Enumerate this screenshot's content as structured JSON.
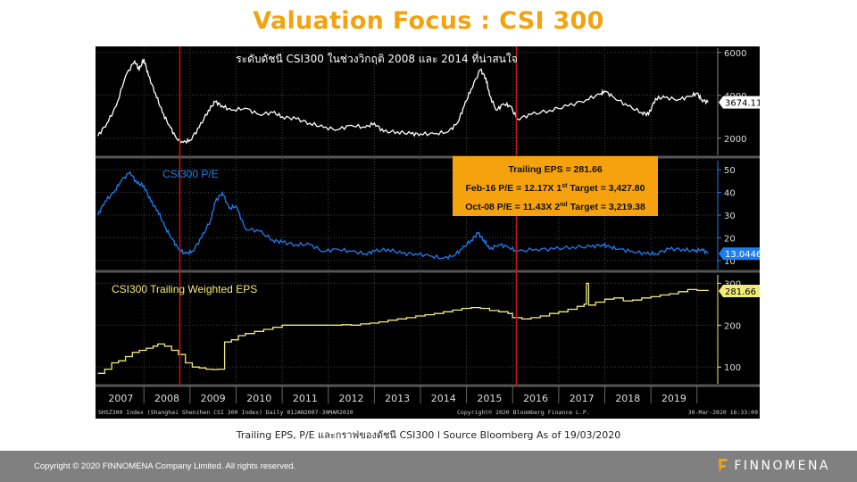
{
  "page": {
    "title": "Valuation Focus : CSI 300",
    "caption": "Trailing EPS, P/E และกราฟของดัชนี CSI300   l Source Bloomberg As of 19/03/2020",
    "footer_copyright": "Copyright © 2020 FINNOMENA Company Limited. All rights reserved.",
    "brand": "FINNOMENA",
    "brand_icon": "finnomena-f-logo-icon",
    "colors": {
      "title": "#f2a30f",
      "index_line": "#ffffff",
      "pe_line": "#1e7ef0",
      "eps_line": "#f0ec7a",
      "marker": "#cc1111",
      "annotation_bg": "#f6a20f",
      "footer_bg": "#808080"
    }
  },
  "chart_data": [
    {
      "type": "line",
      "name": "CSI 300 Index",
      "title": "ระดับดัชนี CSI300 ในช่วงวิกฤติ 2008 และ 2014 ที่น่าสนใจ",
      "ylim": [
        1200,
        6200
      ],
      "yticks": [
        2000,
        4000,
        6000
      ],
      "last_value_label": "3674.11",
      "x": [
        2007.0,
        2007.2,
        2007.4,
        2007.6,
        2007.8,
        2007.9,
        2008.0,
        2008.1,
        2008.25,
        2008.4,
        2008.55,
        2008.7,
        2008.85,
        2009.0,
        2009.2,
        2009.4,
        2009.55,
        2009.7,
        2009.9,
        2010.2,
        2010.5,
        2010.8,
        2011.0,
        2011.3,
        2011.6,
        2011.9,
        2012.2,
        2012.5,
        2012.8,
        2013.0,
        2013.2,
        2013.5,
        2013.8,
        2014.0,
        2014.3,
        2014.6,
        2014.8,
        2014.95,
        2015.1,
        2015.3,
        2015.42,
        2015.5,
        2015.65,
        2015.8,
        2015.95,
        2016.1,
        2016.4,
        2016.8,
        2017.2,
        2017.6,
        2017.9,
        2018.0,
        2018.2,
        2018.5,
        2018.8,
        2018.95,
        2019.1,
        2019.3,
        2019.6,
        2019.85,
        2020.0,
        2020.1,
        2020.24
      ],
      "values": [
        2100,
        2700,
        3500,
        4900,
        5600,
        5200,
        5700,
        4900,
        4100,
        3200,
        2600,
        2000,
        1800,
        1900,
        2500,
        3300,
        3700,
        3500,
        3300,
        3400,
        3100,
        3200,
        3000,
        2900,
        2700,
        2500,
        2400,
        2600,
        2500,
        2700,
        2300,
        2300,
        2200,
        2200,
        2200,
        2300,
        2700,
        3500,
        4300,
        5200,
        4800,
        4000,
        3300,
        3600,
        3500,
        2900,
        3100,
        3300,
        3500,
        3800,
        4050,
        4200,
        3900,
        3500,
        3200,
        3100,
        3850,
        3900,
        3800,
        3950,
        4100,
        3800,
        3674
      ]
    },
    {
      "type": "line",
      "name": "CSI300 P/E",
      "title": "CSI300 P/E",
      "ylim": [
        6,
        54
      ],
      "yticks": [
        10,
        20,
        30,
        40,
        50
      ],
      "last_value_label": "13.0446",
      "x": [
        2007.0,
        2007.15,
        2007.35,
        2007.5,
        2007.7,
        2007.85,
        2008.0,
        2008.15,
        2008.3,
        2008.45,
        2008.6,
        2008.75,
        2008.9,
        2009.05,
        2009.25,
        2009.45,
        2009.55,
        2009.7,
        2009.85,
        2010.0,
        2010.2,
        2010.5,
        2010.8,
        2011.0,
        2011.3,
        2011.6,
        2011.9,
        2012.2,
        2012.5,
        2012.8,
        2013.0,
        2013.3,
        2013.6,
        2013.9,
        2014.2,
        2014.5,
        2014.7,
        2014.9,
        2015.1,
        2015.25,
        2015.38,
        2015.5,
        2015.7,
        2015.9,
        2016.1,
        2016.5,
        2016.9,
        2017.3,
        2017.7,
        2017.95,
        2018.1,
        2018.3,
        2018.6,
        2018.9,
        2019.1,
        2019.4,
        2019.7,
        2019.95,
        2020.1,
        2020.24
      ],
      "values": [
        30,
        36,
        40,
        45,
        49,
        44,
        43,
        36,
        32,
        25,
        20,
        15,
        13,
        14,
        20,
        28,
        36,
        40,
        33,
        34,
        24,
        23,
        19,
        18,
        17,
        17,
        14,
        15,
        14,
        13,
        14,
        15,
        13,
        13,
        12,
        11,
        12,
        15,
        19,
        22,
        19,
        15,
        17,
        16,
        14,
        15,
        15,
        16,
        16,
        17,
        16,
        15,
        14,
        13,
        13,
        15,
        15,
        14,
        15,
        13
      ]
    },
    {
      "type": "line",
      "name": "CSI300 Trailing Weighted EPS",
      "title": "CSI300 Trailing Weighted EPS",
      "ylim": [
        60,
        320
      ],
      "yticks": [
        100,
        200,
        300
      ],
      "last_value_label": "281.66",
      "x": [
        2007.0,
        2007.15,
        2007.3,
        2007.45,
        2007.6,
        2007.75,
        2007.9,
        2008.05,
        2008.2,
        2008.3,
        2008.45,
        2008.6,
        2008.75,
        2008.9,
        2009.05,
        2009.2,
        2009.35,
        2009.5,
        2009.6,
        2009.75,
        2009.9,
        2010.05,
        2010.2,
        2010.4,
        2010.6,
        2010.8,
        2011.0,
        2011.3,
        2011.6,
        2011.9,
        2012.1,
        2012.3,
        2012.5,
        2012.7,
        2012.9,
        2013.1,
        2013.3,
        2013.5,
        2013.7,
        2013.9,
        2014.1,
        2014.3,
        2014.5,
        2014.7,
        2014.9,
        2015.1,
        2015.3,
        2015.5,
        2015.7,
        2015.9,
        2016.0,
        2016.2,
        2016.4,
        2016.6,
        2016.8,
        2017.0,
        2017.2,
        2017.4,
        2017.55,
        2017.6,
        2017.65,
        2017.8,
        2018.0,
        2018.2,
        2018.4,
        2018.6,
        2018.8,
        2019.0,
        2019.2,
        2019.4,
        2019.6,
        2019.8,
        2020.0,
        2020.24
      ],
      "values": [
        85,
        95,
        110,
        115,
        125,
        135,
        140,
        145,
        150,
        155,
        150,
        140,
        130,
        110,
        100,
        98,
        95,
        94,
        95,
        160,
        165,
        175,
        180,
        185,
        190,
        195,
        200,
        200,
        200,
        200,
        200,
        201,
        200,
        203,
        205,
        208,
        212,
        215,
        218,
        222,
        225,
        228,
        232,
        236,
        240,
        242,
        240,
        235,
        232,
        228,
        218,
        215,
        218,
        222,
        228,
        232,
        238,
        245,
        250,
        300,
        248,
        255,
        262,
        265,
        258,
        260,
        265,
        268,
        272,
        275,
        280,
        285,
        283,
        281.66
      ]
    }
  ],
  "shared_axis": {
    "x_range": [
      2006.95,
      2020.45
    ],
    "year_labels": [
      "2007",
      "2008",
      "2009",
      "2010",
      "2011",
      "2012",
      "2013",
      "2014",
      "2015",
      "2016",
      "2017",
      "2018",
      "2019"
    ],
    "markers": [
      {
        "label": "Oct-08",
        "x": 2008.78
      },
      {
        "label": "Feb-16",
        "x": 2016.08
      }
    ]
  },
  "annotation": {
    "line1": "Trailing EPS = 281.66",
    "line2_pre": "Feb-16 P/E = 12.17X 1",
    "line2_sup": "st",
    "line2_post": " Target = 3,427.80",
    "line3_pre": "Oct-08 P/E = 11.43X 2",
    "line3_sup": "nd",
    "line3_post": " Target = 3,219.38"
  },
  "bloomberg": {
    "source_line": "SHSZ300 Index (Shanghai Shenzhen CSI 300 Index)  Daily 01JAN2007-30MAR2020",
    "copyright": "Copyright© 2020 Bloomberg Finance L.P.",
    "timestamp": "30-Mar-2020 16:33:09"
  }
}
